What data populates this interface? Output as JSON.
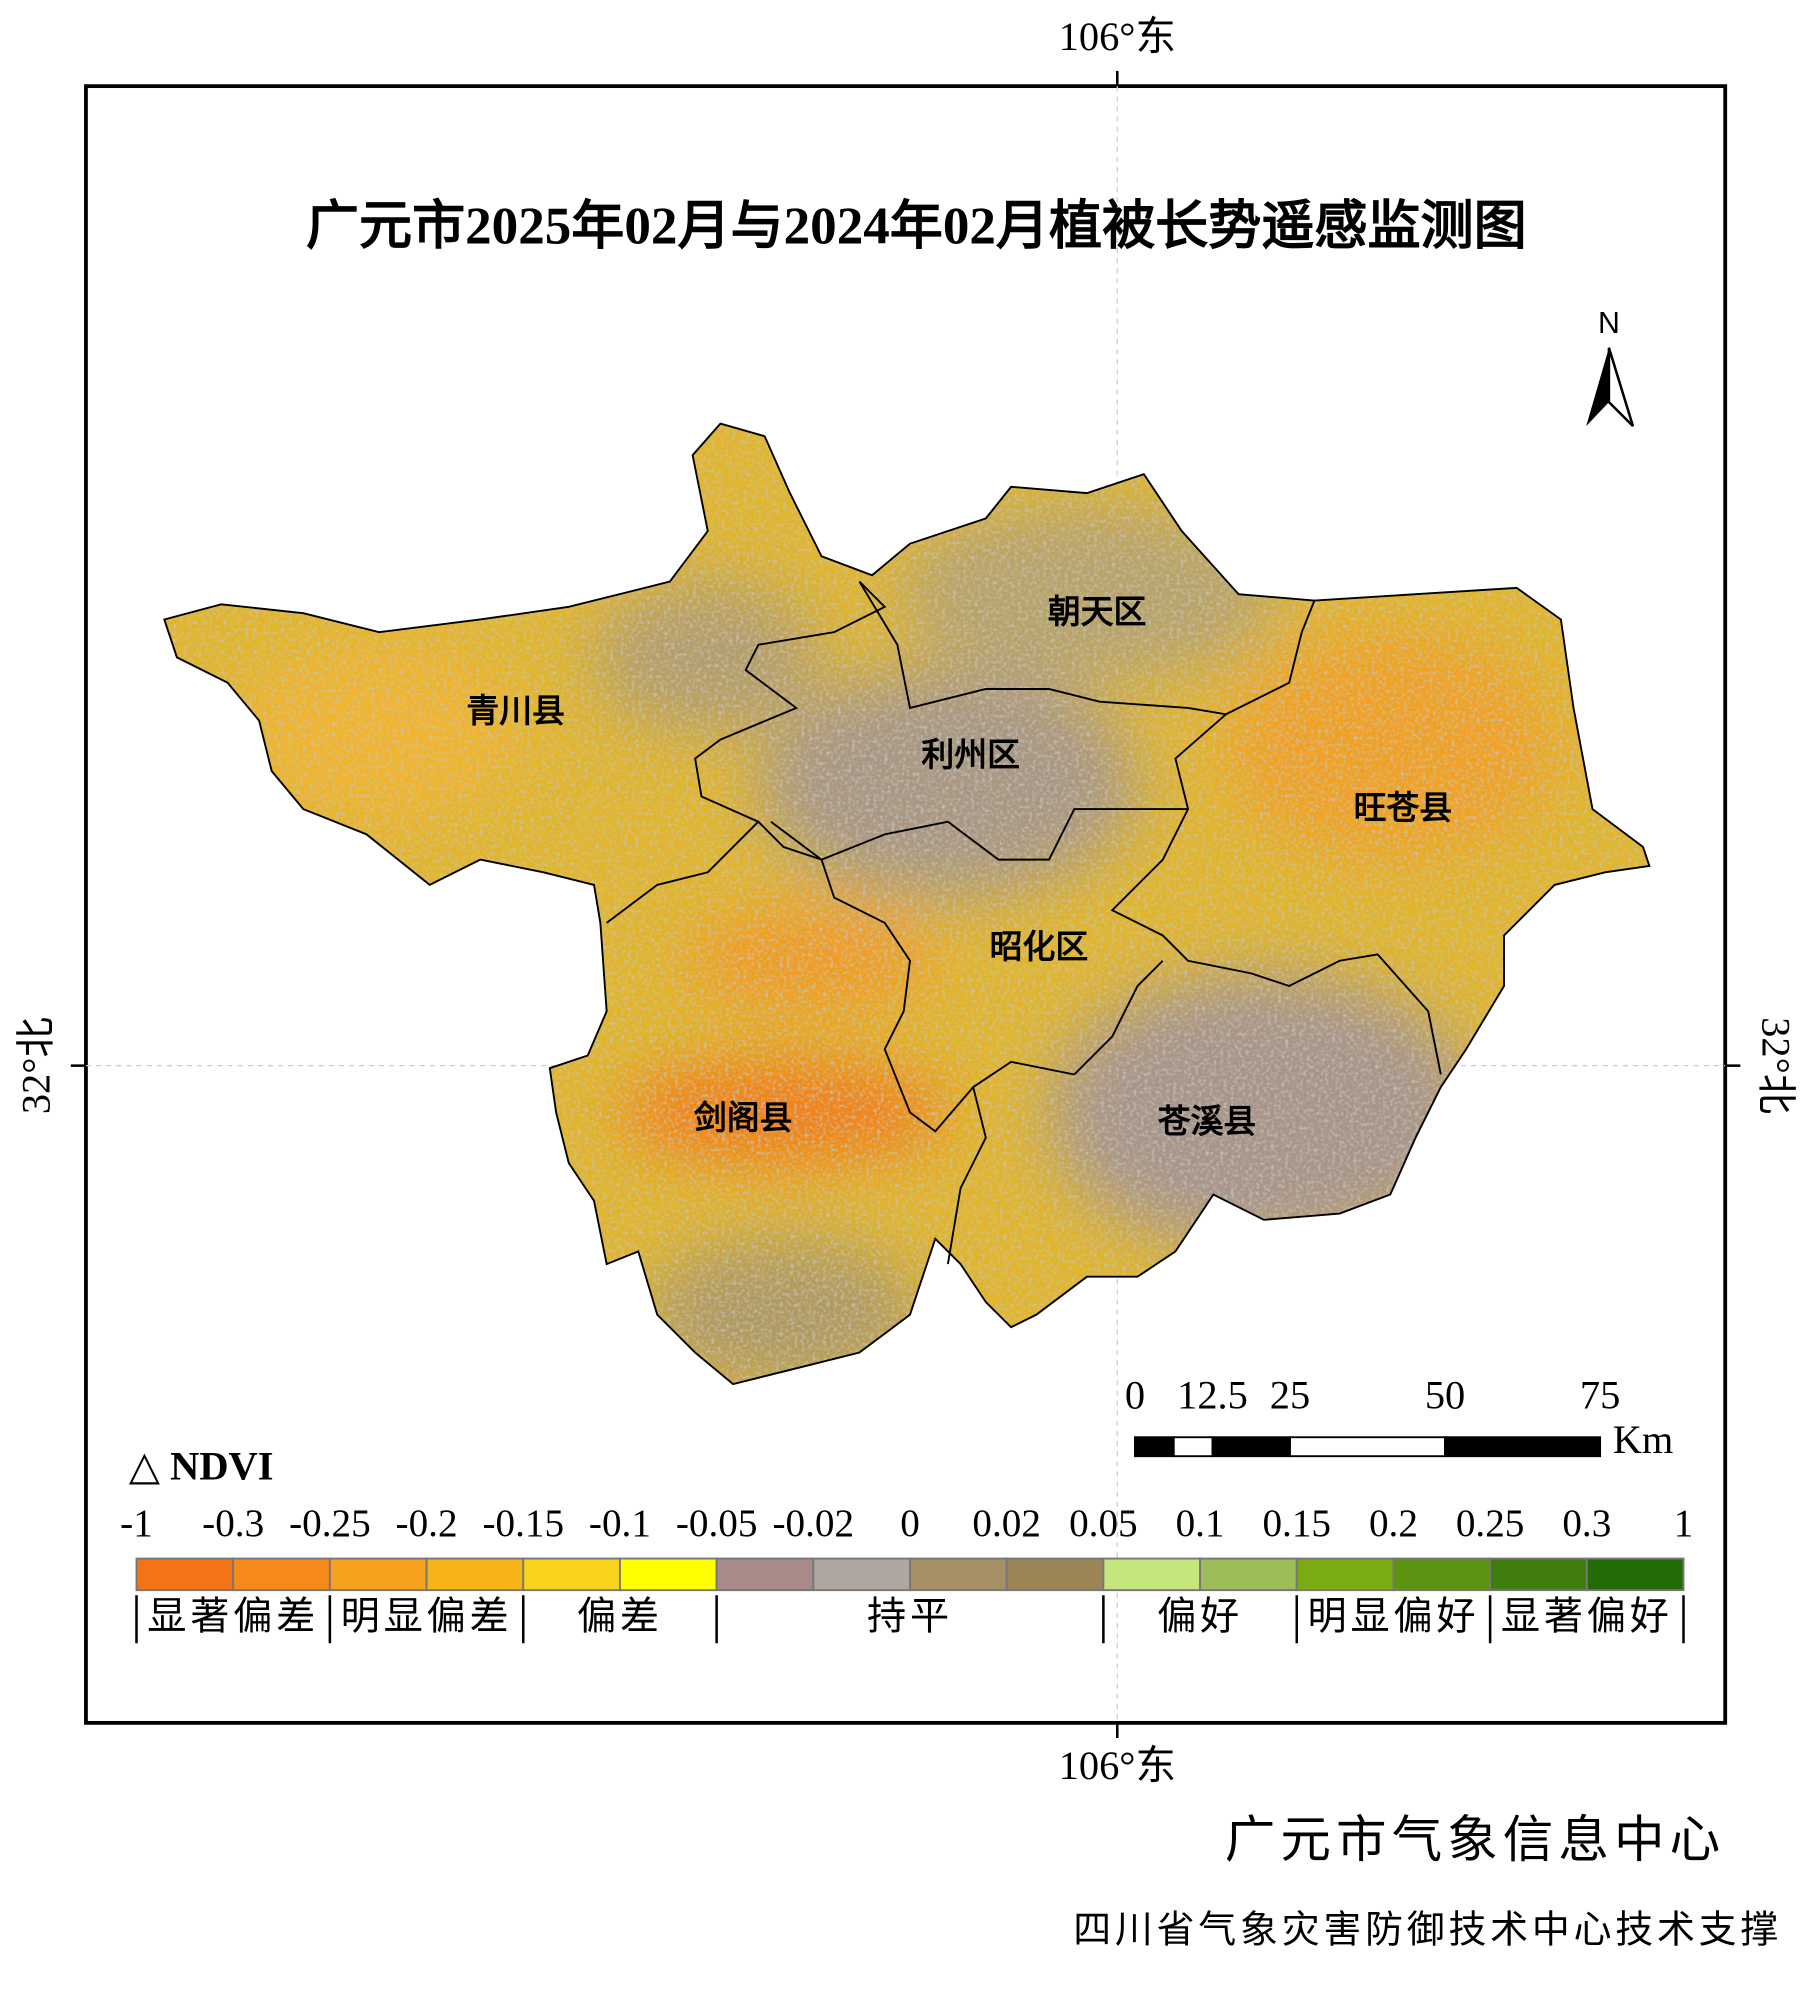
{
  "title": "广元市2025年02月与2024年02月植被长势遥感监测图",
  "coordinates": {
    "top": "106°东",
    "bottom": "106°东",
    "left": "32°北",
    "right": "32°北"
  },
  "north_arrow": "N",
  "districts": [
    "青川县",
    "朝天区",
    "利州区",
    "旺苍县",
    "昭化区",
    "剑阁县",
    "苍溪县"
  ],
  "legend": {
    "title": "△ NDVI",
    "ticks": [
      -1,
      -0.3,
      -0.25,
      -0.2,
      -0.15,
      -0.1,
      -0.05,
      -0.02,
      0,
      0.02,
      0.05,
      0.1,
      0.15,
      0.2,
      0.25,
      0.3,
      1
    ],
    "colors": [
      "#f47316",
      "#f7891b",
      "#f7a11d",
      "#f6b416",
      "#f9d41c",
      "#ffff00",
      "#a88a89",
      "#afa69f",
      "#a89066",
      "#9b8557",
      "#c4e67c",
      "#9cbd57",
      "#7aab14",
      "#5a9410",
      "#3f7d0e",
      "#226b06"
    ],
    "classes": [
      "显著偏差",
      "明显偏差",
      "偏差",
      "持平",
      "偏好",
      "明显偏好",
      "显著偏好"
    ]
  },
  "scale_bar": {
    "ticks": [
      0,
      12.5,
      25,
      50,
      75
    ],
    "unit": "Km"
  },
  "footer": {
    "org": "广元市气象信息中心",
    "support": "四川省气象灾害防御技术中心技术支撑"
  }
}
